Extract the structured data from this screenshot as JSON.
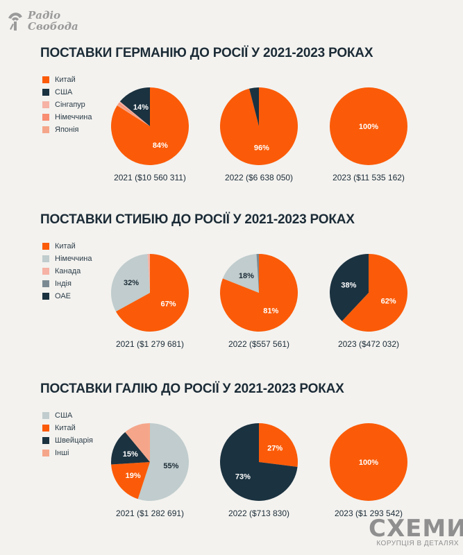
{
  "brand_logo": {
    "line1": "Радіо",
    "line2": "Свобода"
  },
  "footer_brand": {
    "name": "СХЕМИ",
    "tagline": "КОРУПЦІЯ В ДЕТАЛЯХ"
  },
  "colors": {
    "orange": "#fb5b08",
    "navy": "#1b3240",
    "light_gray": "#c0cccd",
    "pink": "#f6b2a4",
    "salmon": "#f88d72",
    "peach": "#f5a68a",
    "gray": "#7b8a92"
  },
  "chart_data": [
    {
      "type": "pie",
      "title": "ПОСТАВКИ ГЕРМАНІЮ ДО РОСІЇ У 2021-2023 РОКАХ",
      "legend": [
        {
          "name": "Китай",
          "color": "#fb5b08"
        },
        {
          "name": "США",
          "color": "#1b3240"
        },
        {
          "name": "Сінгапур",
          "color": "#f6b2a4"
        },
        {
          "name": "Німеччина",
          "color": "#f88d72"
        },
        {
          "name": "Японія",
          "color": "#f5a68a"
        }
      ],
      "pies": [
        {
          "caption": "2021 ($10 560 311)",
          "slices": [
            {
              "name": "Китай",
              "value": 84,
              "label": "84%"
            },
            {
              "name": "Японія",
              "value": 0.8,
              "label": ""
            },
            {
              "name": "Німеччина",
              "value": 0.6,
              "label": ""
            },
            {
              "name": "Сінгапур",
              "value": 0.6,
              "label": ""
            },
            {
              "name": "США",
              "value": 14,
              "label": "14%"
            }
          ]
        },
        {
          "caption": "2022 ($6 638 050)",
          "slices": [
            {
              "name": "Китай",
              "value": 96,
              "label": "96%"
            },
            {
              "name": "США",
              "value": 4,
              "label": ""
            }
          ]
        },
        {
          "caption": "2023 ($11 535 162)",
          "slices": [
            {
              "name": "Китай",
              "value": 100,
              "label": "100%"
            }
          ]
        }
      ]
    },
    {
      "type": "pie",
      "title": "ПОСТАВКИ СТИБІЮ ДО РОСІЇ У 2021-2023 РОКАХ",
      "legend": [
        {
          "name": "Китай",
          "color": "#fb5b08"
        },
        {
          "name": "Німеччина",
          "color": "#c0cccd"
        },
        {
          "name": "Канада",
          "color": "#f6b2a4"
        },
        {
          "name": "Індія",
          "color": "#7b8a92"
        },
        {
          "name": "ОАЕ",
          "color": "#1b3240"
        }
      ],
      "pies": [
        {
          "caption": "2021 ($1 279 681)",
          "slices": [
            {
              "name": "Китай",
              "value": 67,
              "label": "67%"
            },
            {
              "name": "Німеччина",
              "value": 32,
              "label": "32%"
            },
            {
              "name": "Канада",
              "value": 1,
              "label": ""
            }
          ]
        },
        {
          "caption": "2022 ($557 561)",
          "slices": [
            {
              "name": "Китай",
              "value": 81,
              "label": "81%"
            },
            {
              "name": "Німеччина",
              "value": 18,
              "label": "18%"
            },
            {
              "name": "Індія",
              "value": 1,
              "label": ""
            }
          ]
        },
        {
          "caption": "2023 ($472 032)",
          "slices": [
            {
              "name": "Китай",
              "value": 62,
              "label": "62%"
            },
            {
              "name": "ОАЕ",
              "value": 38,
              "label": "38%"
            }
          ]
        }
      ]
    },
    {
      "type": "pie",
      "title": "ПОСТАВКИ ГАЛІЮ ДО РОСІЇ У 2021-2023 РОКАХ",
      "legend": [
        {
          "name": "США",
          "color": "#c0cccd"
        },
        {
          "name": "Китай",
          "color": "#fb5b08"
        },
        {
          "name": "Швейцарія",
          "color": "#1b3240"
        },
        {
          "name": "Інші",
          "color": "#f5a68a"
        }
      ],
      "pies": [
        {
          "caption": "2021 ($1 282 691)",
          "slices": [
            {
              "name": "США",
              "value": 55,
              "label": "55%"
            },
            {
              "name": "Китай",
              "value": 19,
              "label": "19%"
            },
            {
              "name": "Швейцарія",
              "value": 15,
              "label": "15%"
            },
            {
              "name": "Інші",
              "value": 11,
              "label": ""
            }
          ]
        },
        {
          "caption": "2022 ($713 830)",
          "slices": [
            {
              "name": "Китай",
              "value": 27,
              "label": "27%"
            },
            {
              "name": "Швейцарія",
              "value": 73,
              "label": "73%"
            }
          ]
        },
        {
          "caption": "2023 ($1 293 542)",
          "slices": [
            {
              "name": "Китай",
              "value": 100,
              "label": "100%"
            }
          ]
        }
      ]
    }
  ]
}
